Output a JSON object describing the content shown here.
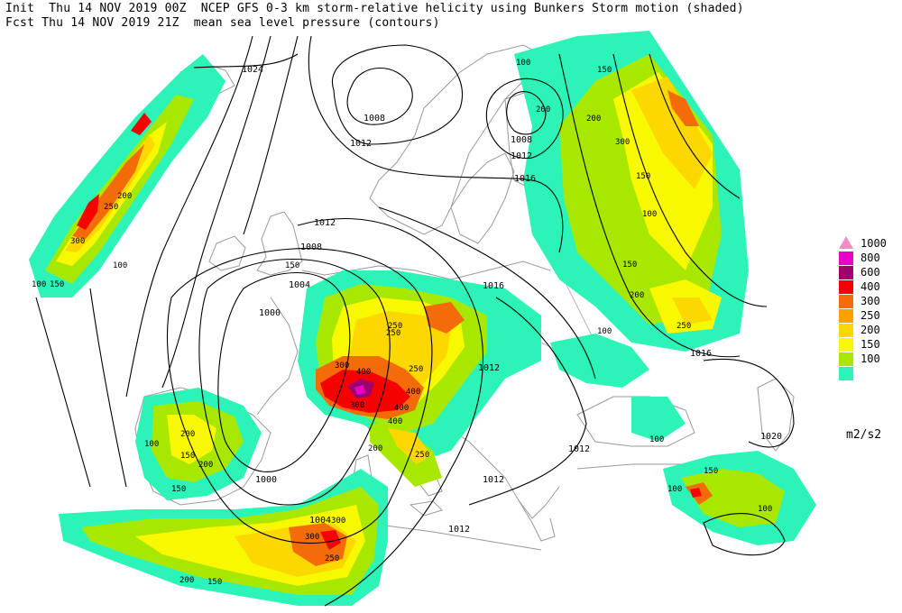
{
  "header": {
    "line1": "Init  Thu 14 NOV 2019 00Z  NCEP GFS 0-3 km storm-relative helicity using Bunkers Storm motion (shaded)",
    "line2": "Fcst Thu 14 NOV 2019 21Z  mean sea level pressure (contours)"
  },
  "legend": {
    "levels": [
      {
        "label": "1000",
        "color": "#f48cc4"
      },
      {
        "label": "800",
        "color": "#e800c8"
      },
      {
        "label": "600",
        "color": "#a0006e"
      },
      {
        "label": "400",
        "color": "#f80000"
      },
      {
        "label": "300",
        "color": "#f46c0a"
      },
      {
        "label": "250",
        "color": "#fca000"
      },
      {
        "label": "200",
        "color": "#fcd800"
      },
      {
        "label": "150",
        "color": "#f8f800"
      },
      {
        "label": "100",
        "color": "#a8e800"
      }
    ],
    "base_color": "#2cf4b8",
    "units": "m2/s2"
  },
  "isobars": [
    "1024",
    "1008",
    "1012",
    "1008",
    "1012",
    "1016",
    "1012",
    "1008",
    "1004",
    "1000",
    "1016",
    "1012",
    "1016",
    "1012",
    "1020",
    "1012",
    "1000",
    "1004",
    "1012"
  ],
  "helicity_labels": [
    "100",
    "150",
    "200",
    "250",
    "300",
    "400",
    "100",
    "150",
    "200",
    "250",
    "300",
    "400",
    "100",
    "150",
    "200",
    "250",
    "300",
    "400",
    "100",
    "150",
    "200",
    "250",
    "300",
    "100",
    "150",
    "200",
    "250",
    "300",
    "100",
    "150",
    "200",
    "250",
    "300",
    "400",
    "100",
    "150",
    "200",
    "250",
    "100",
    "150",
    "200",
    "100",
    "150"
  ]
}
